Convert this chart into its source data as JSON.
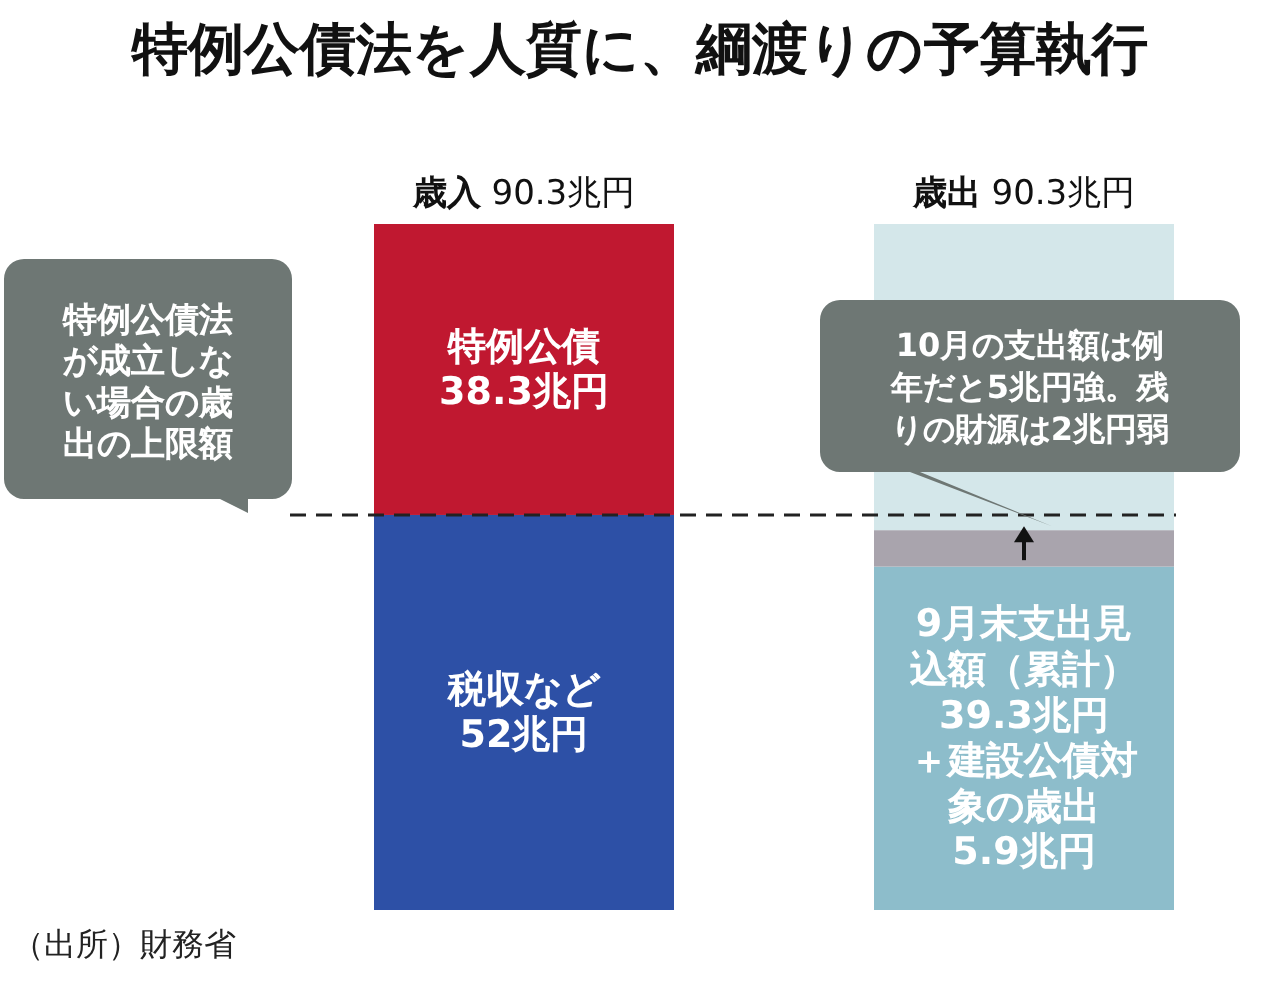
{
  "chart_data": {
    "type": "bar",
    "title": "特例公債法を人質に、綱渡りの予算執行",
    "categories": [
      "歳入",
      "歳出"
    ],
    "stacked": true,
    "series": [
      {
        "values": [
          52,
          45.2
        ],
        "colors": [
          "#2d50a6",
          "#8dbdcb"
        ],
        "value_labels": [
          "税収など52兆円",
          null
        ]
      },
      {
        "values": [
          38.3,
          4.8
        ],
        "colors": [
          "#c01830",
          "#a9a4ad"
        ],
        "value_labels": [
          "特例公債38.3兆円",
          null
        ]
      },
      {
        "values": [
          null,
          40.3
        ],
        "colors": [
          null,
          "#d4e7ea"
        ],
        "value_labels": [
          null,
          null
        ]
      }
    ],
    "totals": [
      "90.3兆円",
      "90.3兆円"
    ],
    "ref_lines": [
      {
        "axis": "y",
        "value": 52,
        "label": "特例公債法が成立しない場合の歳出の上限額",
        "line_style": "dashed",
        "color": "#222222"
      }
    ],
    "annotations": [
      {
        "text": "10月の支出額は例年だと5兆円強。残りの財源は2兆円弱",
        "x": "歳出",
        "y": 50
      },
      "9月末支出見込額（累計）39.3兆円＋建設公債対象の歳出5.9兆円",
      "（出所）財務省"
    ]
  }
}
